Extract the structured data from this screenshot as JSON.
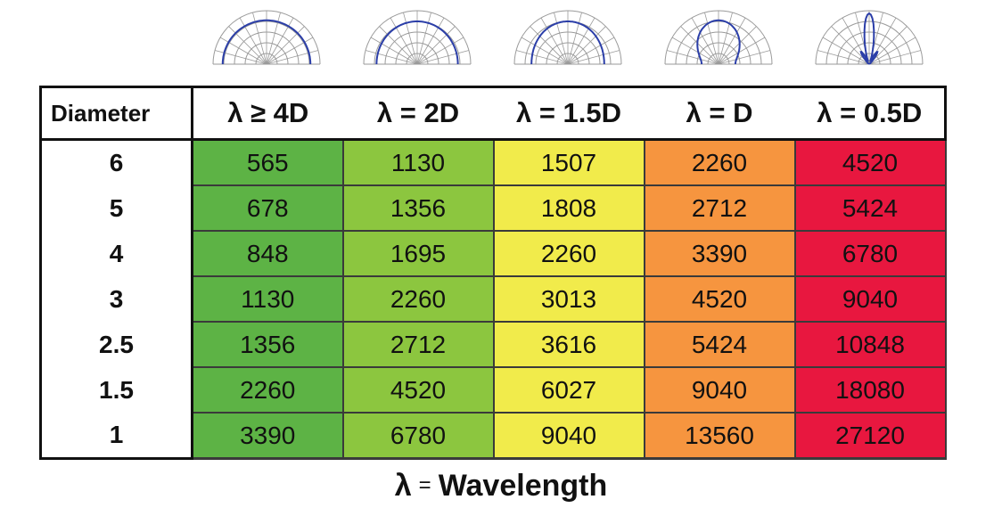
{
  "colors": {
    "col_fills": [
      "#5db345",
      "#8cc63f",
      "#f1eb4b",
      "#f6953f",
      "#e8173f"
    ],
    "polar_grid": "#9a9a9a",
    "polar_curve": "#2b3ea8"
  },
  "chart_data": {
    "type": "table",
    "row_header": "Diameter",
    "columns": [
      "λ ≥ 4D",
      "λ = 2D",
      "λ = 1.5D",
      "λ = D",
      "λ = 0.5D"
    ],
    "rows": [
      {
        "diameter": "6",
        "values": [
          "565",
          "1130",
          "1507",
          "2260",
          "4520"
        ]
      },
      {
        "diameter": "5",
        "values": [
          "678",
          "1356",
          "1808",
          "2712",
          "5424"
        ]
      },
      {
        "diameter": "4",
        "values": [
          "848",
          "1695",
          "2260",
          "3390",
          "6780"
        ]
      },
      {
        "diameter": "3",
        "values": [
          "1130",
          "2260",
          "3013",
          "4520",
          "9040"
        ]
      },
      {
        "diameter": "2.5",
        "values": [
          "1356",
          "2712",
          "3616",
          "5424",
          "10848"
        ]
      },
      {
        "diameter": "1.5",
        "values": [
          "2260",
          "4520",
          "6027",
          "9040",
          "18080"
        ]
      },
      {
        "diameter": "1",
        "values": [
          "3390",
          "6780",
          "9040",
          "13560",
          "27120"
        ]
      }
    ],
    "polar_patterns": [
      "omnidirectional",
      "near-omnidirectional",
      "slightly-flattened",
      "narrowing",
      "narrow-beam-with-sidelobes"
    ]
  },
  "footer": {
    "lambda": "λ",
    "eq": "=",
    "word": "Wavelength"
  }
}
